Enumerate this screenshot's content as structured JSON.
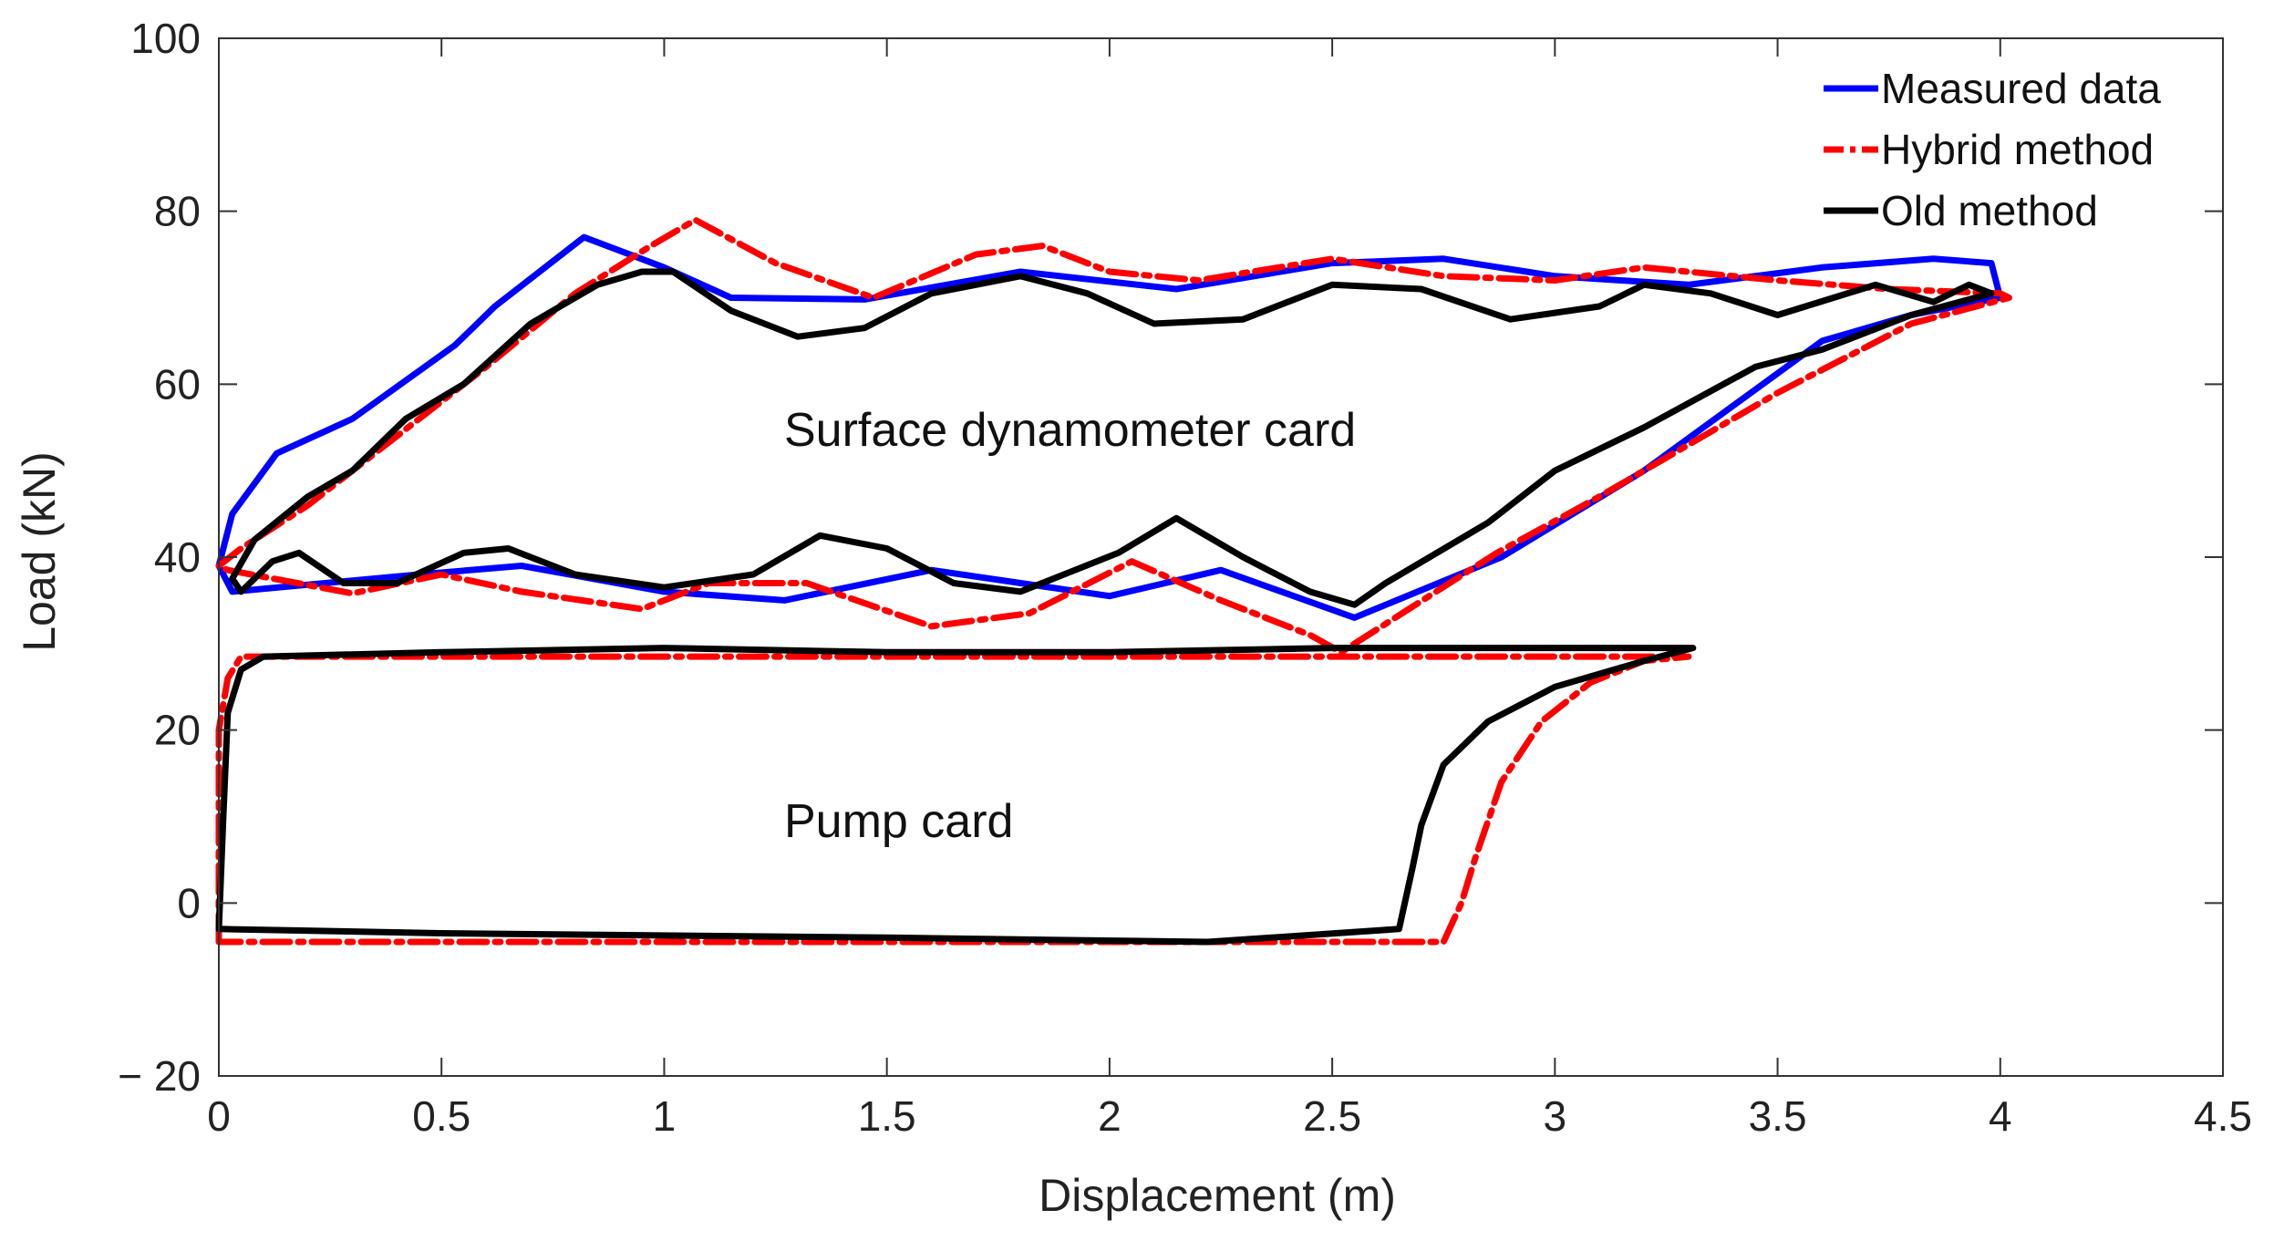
{
  "chart_data": {
    "type": "line",
    "title": "",
    "xlabel": "Displacement (m)",
    "ylabel": "Load (kN)",
    "xlim": [
      0,
      4.5
    ],
    "ylim": [
      -20,
      100
    ],
    "xticks": [
      0,
      0.5,
      1,
      1.5,
      2,
      2.5,
      3,
      3.5,
      4,
      4.5
    ],
    "xtick_labels": [
      "0",
      "0.5",
      "1",
      "1.5",
      "2",
      "2.5",
      "3",
      "3.5",
      "4",
      "4.5"
    ],
    "yticks": [
      -20,
      0,
      20,
      40,
      60,
      80,
      100
    ],
    "ytick_labels": [
      "− 20",
      "0",
      "20",
      "40",
      "60",
      "80",
      "100"
    ],
    "grid": false,
    "legend_position": "top-right",
    "annotations": [
      {
        "text": "Surface dynamometer card",
        "x": 1.2,
        "y": 53
      },
      {
        "text": "Pump card",
        "x": 1.2,
        "y": 8
      }
    ],
    "series": [
      {
        "name": "Measured data",
        "color": "#0000ff",
        "style": "solid",
        "in_legend": true,
        "points": [
          [
            0,
            39
          ],
          [
            0.03,
            45
          ],
          [
            0.13,
            52
          ],
          [
            0.3,
            56
          ],
          [
            0.53,
            64.5
          ],
          [
            0.62,
            69
          ],
          [
            0.82,
            77
          ],
          [
            1,
            73.5
          ],
          [
            1.15,
            70
          ],
          [
            1.45,
            69.8
          ],
          [
            1.8,
            73
          ],
          [
            2.15,
            71
          ],
          [
            2.5,
            74
          ],
          [
            2.75,
            74.5
          ],
          [
            3.0,
            72.5
          ],
          [
            3.3,
            71.5
          ],
          [
            3.6,
            73.5
          ],
          [
            3.85,
            74.5
          ],
          [
            3.98,
            74
          ],
          [
            4.0,
            70
          ],
          [
            3.8,
            68
          ],
          [
            3.6,
            65
          ],
          [
            3.2,
            50
          ],
          [
            2.88,
            40
          ],
          [
            2.55,
            33
          ],
          [
            2.25,
            38.5
          ],
          [
            2.0,
            35.5
          ],
          [
            1.6,
            38.5
          ],
          [
            1.27,
            35
          ],
          [
            1.0,
            36
          ],
          [
            0.68,
            39
          ],
          [
            0.45,
            38
          ],
          [
            0.03,
            36
          ],
          [
            0,
            39
          ]
        ]
      },
      {
        "name": "Hybrid method",
        "color": "#ff0000",
        "style": "dashdot",
        "in_legend": true,
        "points": [
          [
            0,
            39
          ],
          [
            0.05,
            41
          ],
          [
            0.2,
            46
          ],
          [
            0.4,
            54
          ],
          [
            0.6,
            62
          ],
          [
            0.8,
            70.5
          ],
          [
            0.97,
            76
          ],
          [
            1.07,
            79
          ],
          [
            1.25,
            74
          ],
          [
            1.47,
            70
          ],
          [
            1.7,
            75
          ],
          [
            1.85,
            76
          ],
          [
            2.0,
            73
          ],
          [
            2.2,
            72
          ],
          [
            2.5,
            74.5
          ],
          [
            2.75,
            72.5
          ],
          [
            3.0,
            72
          ],
          [
            3.2,
            73.5
          ],
          [
            3.5,
            72
          ],
          [
            3.75,
            71
          ],
          [
            4.0,
            70.5
          ],
          [
            4.02,
            70
          ],
          [
            3.8,
            67
          ],
          [
            3.5,
            59
          ],
          [
            3.1,
            47
          ],
          [
            2.87,
            40.5
          ],
          [
            2.52,
            29
          ],
          [
            2.45,
            31
          ],
          [
            2.25,
            35
          ],
          [
            2.05,
            39.5
          ],
          [
            1.82,
            33.5
          ],
          [
            1.6,
            32
          ],
          [
            1.32,
            37
          ],
          [
            1.1,
            37
          ],
          [
            0.95,
            34
          ],
          [
            0.68,
            36
          ],
          [
            0.5,
            38
          ],
          [
            0.3,
            35.8
          ],
          [
            0.02,
            38.5
          ],
          [
            0,
            39
          ]
        ]
      },
      {
        "name": "Old method",
        "color": "#000000",
        "style": "solid",
        "in_legend": true,
        "points": [
          [
            0.03,
            37.5
          ],
          [
            0.08,
            42
          ],
          [
            0.2,
            47
          ],
          [
            0.3,
            50
          ],
          [
            0.42,
            56
          ],
          [
            0.55,
            60
          ],
          [
            0.7,
            67
          ],
          [
            0.85,
            71.5
          ],
          [
            0.95,
            73
          ],
          [
            1.02,
            73
          ],
          [
            1.15,
            68.5
          ],
          [
            1.3,
            65.5
          ],
          [
            1.45,
            66.5
          ],
          [
            1.6,
            70.5
          ],
          [
            1.8,
            72.5
          ],
          [
            1.95,
            70.5
          ],
          [
            2.1,
            67
          ],
          [
            2.3,
            67.5
          ],
          [
            2.5,
            71.5
          ],
          [
            2.7,
            71
          ],
          [
            2.9,
            67.5
          ],
          [
            3.1,
            69
          ],
          [
            3.2,
            71.5
          ],
          [
            3.35,
            70.5
          ],
          [
            3.5,
            68
          ],
          [
            3.72,
            71.5
          ],
          [
            3.85,
            69.5
          ],
          [
            3.93,
            71.5
          ],
          [
            3.98,
            70.5
          ],
          [
            3.8,
            68
          ],
          [
            3.6,
            64
          ],
          [
            3.45,
            62
          ],
          [
            3.2,
            55
          ],
          [
            3.0,
            50
          ],
          [
            2.85,
            44
          ],
          [
            2.62,
            37
          ],
          [
            2.55,
            34.5
          ],
          [
            2.45,
            36
          ],
          [
            2.3,
            40
          ],
          [
            2.15,
            44.5
          ],
          [
            2.02,
            40.5
          ],
          [
            1.8,
            36
          ],
          [
            1.65,
            37
          ],
          [
            1.5,
            41
          ],
          [
            1.35,
            42.5
          ],
          [
            1.2,
            38
          ],
          [
            1.0,
            36.5
          ],
          [
            0.8,
            38
          ],
          [
            0.65,
            41
          ],
          [
            0.55,
            40.5
          ],
          [
            0.4,
            37
          ],
          [
            0.28,
            37
          ],
          [
            0.18,
            40.5
          ],
          [
            0.12,
            39.5
          ],
          [
            0.05,
            36
          ],
          [
            0.03,
            37.5
          ]
        ]
      },
      {
        "name": "Hybrid method (pump card)",
        "color": "#ff0000",
        "style": "dashdot",
        "in_legend": false,
        "points": [
          [
            0,
            -4.5
          ],
          [
            0,
            20
          ],
          [
            0.02,
            26
          ],
          [
            0.05,
            28.5
          ],
          [
            0.3,
            28.5
          ],
          [
            1.0,
            28.5
          ],
          [
            2.0,
            28.5
          ],
          [
            3.0,
            28.5
          ],
          [
            3.3,
            28.5
          ],
          [
            3.2,
            28
          ],
          [
            3.08,
            25.5
          ],
          [
            2.97,
            21
          ],
          [
            2.88,
            14
          ],
          [
            2.82,
            5
          ],
          [
            2.79,
            0
          ],
          [
            2.75,
            -4.5
          ],
          [
            2.0,
            -4.5
          ],
          [
            1.0,
            -4.5
          ],
          [
            0,
            -4.5
          ]
        ]
      },
      {
        "name": "Old method (pump card)",
        "color": "#000000",
        "style": "solid",
        "in_legend": false,
        "points": [
          [
            0.0,
            -3
          ],
          [
            0.01,
            10
          ],
          [
            0.02,
            22
          ],
          [
            0.05,
            27
          ],
          [
            0.1,
            28.5
          ],
          [
            0.5,
            29
          ],
          [
            1.0,
            29.5
          ],
          [
            1.5,
            29
          ],
          [
            2.0,
            29
          ],
          [
            2.5,
            29.5
          ],
          [
            3.0,
            29.5
          ],
          [
            3.31,
            29.5
          ],
          [
            3.2,
            28
          ],
          [
            3.0,
            25
          ],
          [
            2.85,
            21
          ],
          [
            2.75,
            16
          ],
          [
            2.7,
            9
          ],
          [
            2.68,
            4
          ],
          [
            2.65,
            -3
          ],
          [
            2.22,
            -4.5
          ],
          [
            1.5,
            -4
          ],
          [
            0.5,
            -3.5
          ],
          [
            0.0,
            -3
          ]
        ]
      }
    ]
  }
}
